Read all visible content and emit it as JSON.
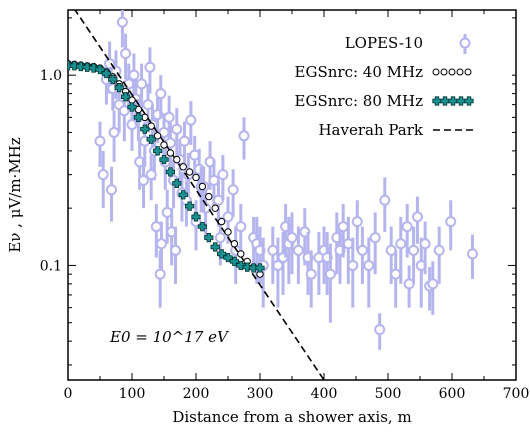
{
  "chart_data": {
    "type": "scatter",
    "xlabel": "Distance from a shower axis, m",
    "ylabel": "Eν ,  μV/m·MHz",
    "annotation": "E0 = 10^17 eV",
    "xlim": [
      0,
      700
    ],
    "ylim": [
      0.025,
      2.2
    ],
    "yscale": "log",
    "x_ticks": [
      "0",
      "100",
      "200",
      "300",
      "400",
      "500",
      "600",
      "700"
    ],
    "y_ticks": [
      "0.1",
      "1.0"
    ],
    "grid": false,
    "legend_position": "top-right",
    "legend": [
      {
        "label": "LOPES-10",
        "style": "open-circle-errorbar"
      },
      {
        "label": "EGSnrc: 40 MHz",
        "style": "open-circle"
      },
      {
        "label": "EGSnrc: 80 MHz",
        "style": "teal-cross"
      },
      {
        "label": "Haverah Park",
        "style": "dashed-line"
      }
    ],
    "colors": {
      "lopes": "#b4b4ee",
      "egs40": "#000000",
      "egs80_fill": "#1a9090",
      "egs80_edge": "#003333",
      "haverah": "#000000"
    },
    "series": [
      {
        "name": "LOPES-10",
        "points": [
          [
            60,
            0.95,
            0.25
          ],
          [
            65,
            1.15,
            0.35
          ],
          [
            70,
            0.85,
            0.2
          ],
          [
            75,
            1.05,
            0.3
          ],
          [
            80,
            0.7,
            0.2
          ],
          [
            85,
            1.9,
            0.5
          ],
          [
            88,
            0.65,
            0.2
          ],
          [
            90,
            1.3,
            0.35
          ],
          [
            95,
            0.9,
            0.25
          ],
          [
            100,
            0.55,
            0.15
          ],
          [
            103,
            1.0,
            0.3
          ],
          [
            106,
            0.75,
            0.2
          ],
          [
            110,
            0.6,
            0.15
          ],
          [
            115,
            0.9,
            0.25
          ],
          [
            120,
            0.45,
            0.12
          ],
          [
            125,
            0.7,
            0.2
          ],
          [
            128,
            1.1,
            0.3
          ],
          [
            132,
            0.55,
            0.15
          ],
          [
            135,
            0.4,
            0.12
          ],
          [
            140,
            0.62,
            0.18
          ],
          [
            145,
            0.8,
            0.2
          ],
          [
            150,
            0.5,
            0.13
          ],
          [
            152,
            0.35,
            0.1
          ],
          [
            158,
            0.6,
            0.18
          ],
          [
            160,
            0.44,
            0.12
          ],
          [
            165,
            0.28,
            0.08
          ],
          [
            170,
            0.52,
            0.15
          ],
          [
            175,
            0.36,
            0.1
          ],
          [
            178,
            0.24,
            0.07
          ],
          [
            182,
            0.45,
            0.12
          ],
          [
            188,
            0.3,
            0.09
          ],
          [
            192,
            0.58,
            0.15
          ],
          [
            198,
            0.38,
            0.1
          ],
          [
            205,
            0.32,
            0.09
          ],
          [
            208,
            0.26,
            0.07
          ],
          [
            215,
            0.2,
            0.06
          ],
          [
            222,
            0.35,
            0.1
          ],
          [
            228,
            0.28,
            0.08
          ],
          [
            235,
            0.22,
            0.06
          ],
          [
            242,
            0.3,
            0.08
          ],
          [
            250,
            0.18,
            0.05
          ],
          [
            258,
            0.25,
            0.07
          ],
          [
            262,
            0.12,
            0.04
          ],
          [
            270,
            0.16,
            0.05
          ],
          [
            275,
            0.48,
            0.12
          ],
          [
            50,
            0.45,
            0.12
          ],
          [
            55,
            0.3,
            0.1
          ],
          [
            68,
            0.25,
            0.08
          ],
          [
            72,
            0.5,
            0.15
          ],
          [
            112,
            0.35,
            0.1
          ],
          [
            118,
            0.28,
            0.08
          ],
          [
            130,
            0.3,
            0.08
          ],
          [
            138,
            0.16,
            0.05
          ],
          [
            146,
            0.13,
            0.04
          ],
          [
            155,
            0.19,
            0.06
          ],
          [
            162,
            0.15,
            0.05
          ],
          [
            168,
            0.12,
            0.04
          ],
          [
            144,
            0.09,
            0.03
          ],
          [
            185,
            0.22,
            0.06
          ],
          [
            200,
            0.17,
            0.05
          ],
          [
            212,
            0.26,
            0.07
          ],
          [
            238,
            0.14,
            0.04
          ],
          [
            290,
            0.14,
            0.04
          ],
          [
            295,
            0.13,
            0.05
          ],
          [
            300,
            0.12,
            0.04
          ],
          [
            305,
            0.1,
            0.04
          ],
          [
            320,
            0.12,
            0.04
          ],
          [
            328,
            0.1,
            0.04
          ],
          [
            336,
            0.11,
            0.04
          ],
          [
            340,
            0.16,
            0.05
          ],
          [
            345,
            0.13,
            0.05
          ],
          [
            350,
            0.14,
            0.05
          ],
          [
            360,
            0.12,
            0.04
          ],
          [
            370,
            0.15,
            0.05
          ],
          [
            375,
            0.11,
            0.04
          ],
          [
            380,
            0.09,
            0.03
          ],
          [
            392,
            0.11,
            0.04
          ],
          [
            400,
            0.12,
            0.04
          ],
          [
            405,
            0.11,
            0.04
          ],
          [
            410,
            0.09,
            0.04
          ],
          [
            420,
            0.14,
            0.05
          ],
          [
            425,
            0.12,
            0.04
          ],
          [
            430,
            0.16,
            0.05
          ],
          [
            438,
            0.13,
            0.05
          ],
          [
            445,
            0.1,
            0.04
          ],
          [
            452,
            0.17,
            0.05
          ],
          [
            460,
            0.12,
            0.04
          ],
          [
            470,
            0.1,
            0.04
          ],
          [
            480,
            0.14,
            0.05
          ],
          [
            487,
            0.046,
            0.01
          ],
          [
            495,
            0.22,
            0.07
          ],
          [
            505,
            0.12,
            0.04
          ],
          [
            512,
            0.09,
            0.03
          ],
          [
            520,
            0.13,
            0.05
          ],
          [
            530,
            0.16,
            0.05
          ],
          [
            533,
            0.08,
            0.02
          ],
          [
            540,
            0.12,
            0.04
          ],
          [
            546,
            0.18,
            0.05
          ],
          [
            552,
            0.1,
            0.04
          ],
          [
            558,
            0.13,
            0.04
          ],
          [
            565,
            0.078,
            0.02
          ],
          [
            570,
            0.08,
            0.025
          ],
          [
            580,
            0.12,
            0.04
          ],
          [
            598,
            0.17,
            0.05
          ],
          [
            632,
            0.115,
            0.03
          ]
        ]
      },
      {
        "name": "EGSnrc: 40 MHz",
        "points": [
          [
            0,
            1.15
          ],
          [
            10,
            1.14
          ],
          [
            20,
            1.13
          ],
          [
            30,
            1.12
          ],
          [
            40,
            1.11
          ],
          [
            50,
            1.09
          ],
          [
            60,
            1.04
          ],
          [
            70,
            0.98
          ],
          [
            80,
            0.9
          ],
          [
            90,
            0.82
          ],
          [
            100,
            0.74
          ],
          [
            110,
            0.66
          ],
          [
            120,
            0.6
          ],
          [
            130,
            0.54
          ],
          [
            140,
            0.48
          ],
          [
            150,
            0.43
          ],
          [
            160,
            0.39
          ],
          [
            170,
            0.36
          ],
          [
            180,
            0.33
          ],
          [
            190,
            0.31
          ],
          [
            200,
            0.29
          ],
          [
            210,
            0.26
          ],
          [
            220,
            0.23
          ],
          [
            230,
            0.2
          ],
          [
            240,
            0.17
          ],
          [
            250,
            0.15
          ],
          [
            260,
            0.13
          ],
          [
            270,
            0.115
          ],
          [
            280,
            0.105
          ],
          [
            290,
            0.098
          ],
          [
            300,
            0.09
          ]
        ]
      },
      {
        "name": "EGSnrc: 80 MHz",
        "points": [
          [
            0,
            1.12
          ],
          [
            10,
            1.12
          ],
          [
            20,
            1.11
          ],
          [
            30,
            1.1
          ],
          [
            40,
            1.09
          ],
          [
            50,
            1.07
          ],
          [
            60,
            1.02
          ],
          [
            70,
            0.95
          ],
          [
            80,
            0.86
          ],
          [
            90,
            0.77
          ],
          [
            100,
            0.68
          ],
          [
            110,
            0.6
          ],
          [
            120,
            0.52
          ],
          [
            130,
            0.46
          ],
          [
            140,
            0.4
          ],
          [
            150,
            0.36
          ],
          [
            160,
            0.31
          ],
          [
            170,
            0.27
          ],
          [
            180,
            0.235
          ],
          [
            190,
            0.205
          ],
          [
            200,
            0.18
          ],
          [
            210,
            0.16
          ],
          [
            220,
            0.14
          ],
          [
            230,
            0.125
          ],
          [
            240,
            0.115
          ],
          [
            250,
            0.11
          ],
          [
            260,
            0.105
          ],
          [
            270,
            0.1
          ],
          [
            280,
            0.098
          ],
          [
            290,
            0.097
          ],
          [
            300,
            0.097
          ]
        ]
      },
      {
        "name": "Haverah Park",
        "line": [
          [
            0,
            2.5
          ],
          [
            400,
            0.025
          ]
        ]
      }
    ]
  }
}
